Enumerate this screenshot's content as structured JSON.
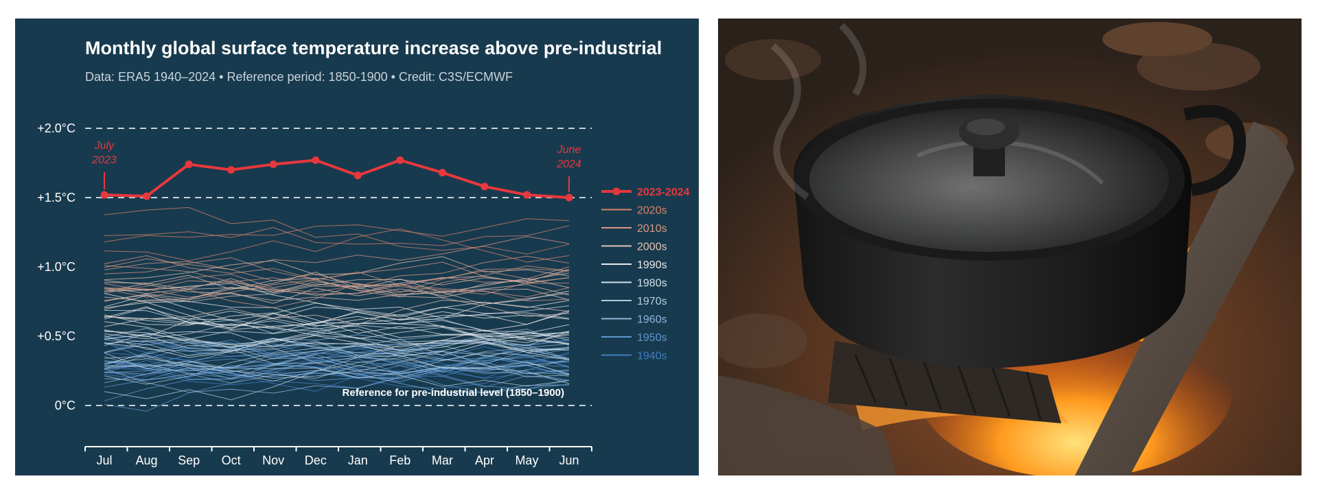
{
  "chart_data": {
    "type": "line",
    "title": "Monthly global surface temperature increase above pre-industrial",
    "subtitle": "Data: ERA5 1940–2024 • Reference period: 1850-1900 • Credit: C3S/ECMWF",
    "categories": [
      "Jul",
      "Aug",
      "Sep",
      "Oct",
      "Nov",
      "Dec",
      "Jan",
      "Feb",
      "Mar",
      "Apr",
      "May",
      "Jun"
    ],
    "ylim": [
      -0.3,
      2.0
    ],
    "y_ticks": [
      {
        "value": 2.0,
        "label": "+2.0°C"
      },
      {
        "value": 1.5,
        "label": "+1.5°C"
      },
      {
        "value": 1.0,
        "label": "+1.0°C"
      },
      {
        "value": 0.5,
        "label": "+0.5°C"
      },
      {
        "value": 0.0,
        "label": "0°C"
      }
    ],
    "reference_lines": [
      2.0,
      1.5,
      0.0
    ],
    "reference_label": "Reference for pre-industrial level (1850–1900)",
    "highlight": {
      "name": "2023-2024",
      "color": "#e8383d",
      "values": [
        1.52,
        1.51,
        1.74,
        1.7,
        1.74,
        1.77,
        1.66,
        1.77,
        1.68,
        1.58,
        1.52,
        1.5
      ],
      "start_annotation": "July\n2023",
      "end_annotation": "June\n2024"
    },
    "decades": [
      {
        "name": "2020s",
        "color": "#d9846b",
        "years": 4,
        "base": 1.17
      },
      {
        "name": "2010s",
        "color": "#d99a85",
        "years": 10,
        "base": 0.93
      },
      {
        "name": "2000s",
        "color": "#e3c2b4",
        "years": 10,
        "base": 0.8
      },
      {
        "name": "1990s",
        "color": "#eaeaea",
        "years": 10,
        "base": 0.62
      },
      {
        "name": "1980s",
        "color": "#d6e2ec",
        "years": 10,
        "base": 0.5
      },
      {
        "name": "1970s",
        "color": "#b3cde1",
        "years": 10,
        "base": 0.33
      },
      {
        "name": "1960s",
        "color": "#8fb7dc",
        "years": 10,
        "base": 0.3
      },
      {
        "name": "1950s",
        "color": "#5f97cf",
        "years": 10,
        "base": 0.25
      },
      {
        "name": "1940s",
        "color": "#3f7fc4",
        "years": 10,
        "base": 0.3
      }
    ],
    "grid": false,
    "legend_position": "right"
  },
  "photo": {
    "subject": "cast-iron-pot-over-campfire"
  }
}
